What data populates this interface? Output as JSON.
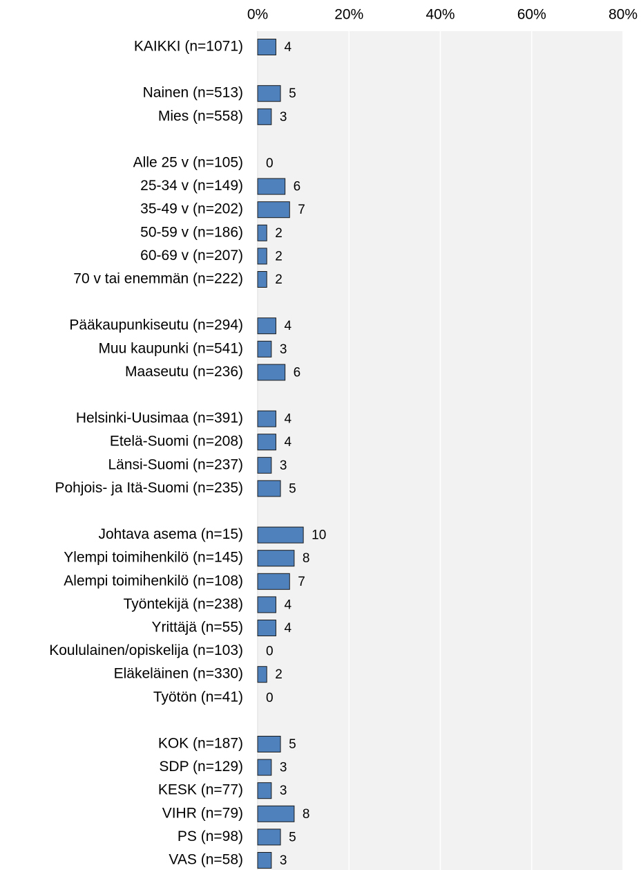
{
  "chart_data": {
    "type": "bar",
    "orientation": "horizontal",
    "color": "#4f81bd",
    "categories": [
      "KAIKKI (n=1071)",
      null,
      "Nainen (n=513)",
      "Mies (n=558)",
      null,
      "Alle 25 v (n=105)",
      "25-34 v (n=149)",
      "35-49 v (n=202)",
      "50-59 v (n=186)",
      "60-69 v (n=207)",
      "70 v tai enemmän (n=222)",
      null,
      "Pääkaupunkiseutu (n=294)",
      "Muu kaupunki (n=541)",
      "Maaseutu (n=236)",
      null,
      "Helsinki-Uusimaa (n=391)",
      "Etelä-Suomi (n=208)",
      "Länsi-Suomi (n=237)",
      "Pohjois- ja Itä-Suomi (n=235)",
      null,
      "Johtava asema (n=15)",
      "Ylempi toimihenkilö (n=145)",
      "Alempi toimihenkilö (n=108)",
      "Työntekijä (n=238)",
      "Yrittäjä (n=55)",
      "Koululainen/opiskelija (n=103)",
      "Eläkeläinen (n=330)",
      "Työtön (n=41)",
      null,
      "KOK (n=187)",
      "SDP (n=129)",
      "KESK (n=77)",
      "VIHR (n=79)",
      "PS (n=98)",
      "VAS (n=58)"
    ],
    "values": [
      4,
      null,
      5,
      3,
      null,
      0,
      6,
      7,
      2,
      2,
      2,
      null,
      4,
      3,
      6,
      null,
      4,
      4,
      3,
      5,
      null,
      10,
      8,
      7,
      4,
      4,
      0,
      2,
      0,
      null,
      5,
      3,
      3,
      8,
      5,
      3
    ],
    "xlim": [
      0,
      80
    ],
    "xticks": [
      {
        "value": 0,
        "label": "0%"
      },
      {
        "value": 20,
        "label": "20%"
      },
      {
        "value": 40,
        "label": "40%"
      },
      {
        "value": 60,
        "label": "60%"
      },
      {
        "value": 80,
        "label": "80%"
      }
    ],
    "grid": true
  }
}
